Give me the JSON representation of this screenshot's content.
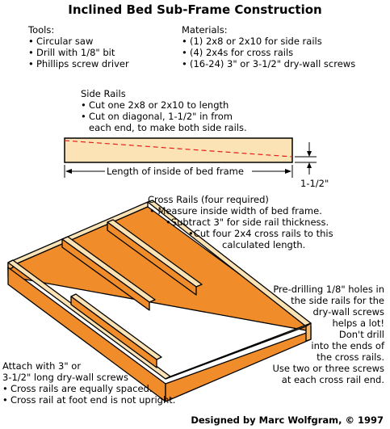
{
  "title": "Inclined Bed Sub-Frame Construction",
  "tools": {
    "heading": "Tools:",
    "items": [
      "Circular saw",
      "Drill with 1/8\" bit",
      "Phillips screw driver"
    ]
  },
  "materials": {
    "heading": "Materials:",
    "items": [
      "(1) 2x8 or 2x10 for side rails",
      "(4) 2x4s for cross rails",
      "(16-24) 3\" or 3-1/2\" dry-wall screws"
    ]
  },
  "side_rails": {
    "heading": "Side Rails",
    "items": [
      "Cut one 2x8 or 2x10 to length",
      "Cut on diagonal, 1-1/2\" in from",
      "each end, to make both side rails."
    ],
    "length_label": "Length of inside of bed frame",
    "offset_label": "1-1/2\""
  },
  "cross_rails": {
    "heading": "Cross Rails (four required)",
    "lines": [
      "• Measure inside width of bed frame.",
      "•Subtract 3\" for side rail thickness.",
      "•Cut four 2x4 cross rails to this",
      "calculated length."
    ]
  },
  "predrill": {
    "lines": [
      "Pre-drilling 1/8\" holes in",
      "the side rails for the",
      "dry-wall screws",
      "helps a lot!",
      "Don't drill",
      "into the ends of",
      "the cross rails.",
      "Use two or three screws",
      "at each cross rail end."
    ]
  },
  "attach": {
    "lines": [
      "Attach with 3\" or",
      "3-1/2\" long dry-wall screws"
    ],
    "items": [
      "Cross rails are equally spaced.",
      "Cross rail at foot end is not upright."
    ]
  },
  "credit": "Designed by Marc Wolfgram, © 1997",
  "colors": {
    "wood_top": "#fbe3b5",
    "wood_side": "#f08c2a",
    "wood_end": "#f6b66a",
    "outline": "#000000",
    "cut_line": "#e0201a"
  }
}
